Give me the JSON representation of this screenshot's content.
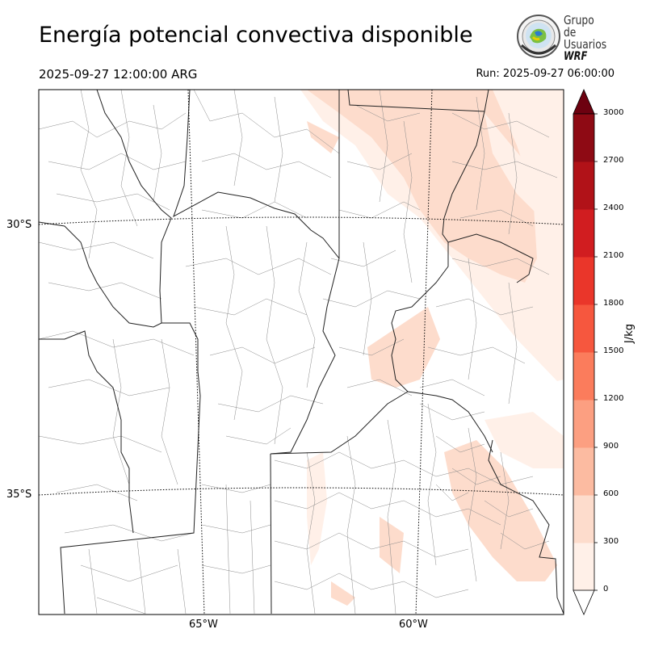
{
  "header": {
    "title": "Energía potencial convectiva disponible",
    "valid_time": "2025-09-27 12:00:00 ARG",
    "run_time": "Run: 2025-09-27 06:00:00"
  },
  "logo": {
    "line1": "Grupo de",
    "line2": "Usuarios",
    "line3": "WRF"
  },
  "map": {
    "lat_labels": [
      "30°S",
      "35°S"
    ],
    "lon_labels": [
      "65°W",
      "60°W"
    ]
  },
  "colorbar": {
    "unit": "J/kg",
    "ticks": [
      "0",
      "300",
      "600",
      "900",
      "1200",
      "1500",
      "1800",
      "2100",
      "2400",
      "2700",
      "3000"
    ],
    "colors": [
      "#fff0e8",
      "#fddccc",
      "#fcbba1",
      "#fc9f81",
      "#fb7c5c",
      "#f6573e",
      "#ea362a",
      "#d11d20",
      "#b11218",
      "#8e0a14",
      "#6d0110"
    ],
    "extend": "both"
  }
}
